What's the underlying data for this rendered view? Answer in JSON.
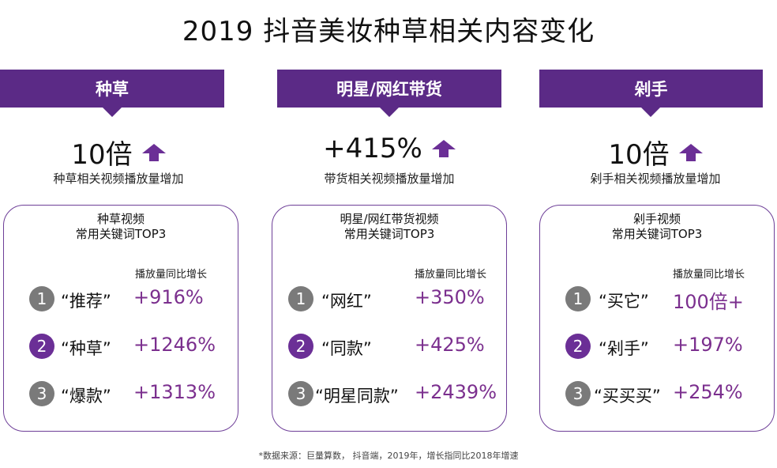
{
  "title": "2019 抖音美妆种草相关内容变化",
  "columns": [
    {
      "banner": "种草",
      "metric": "10倍",
      "metric_label": "种草相关视频播放量增加",
      "card_head_1": "种草视频",
      "card_head_2": "常用关键词TOP3",
      "growth_header": "播放量同比增长",
      "rows": [
        {
          "rank": "1",
          "keyword": "“推荐”",
          "growth": "+916%"
        },
        {
          "rank": "2",
          "keyword": "“种草”",
          "growth": "+1246%"
        },
        {
          "rank": "3",
          "keyword": "“爆款”",
          "growth": "+1313%"
        }
      ]
    },
    {
      "banner": "明星/网红带货",
      "metric": "+415%",
      "metric_label": "带货相关视频播放量增加",
      "card_head_1": "明星/网红带货视频",
      "card_head_2": "常用关键词TOP3",
      "growth_header": "播放量同比增长",
      "rows": [
        {
          "rank": "1",
          "keyword": "“网红”",
          "growth": "+350%"
        },
        {
          "rank": "2",
          "keyword": "“同款”",
          "growth": "+425%"
        },
        {
          "rank": "3",
          "keyword": "“明星同款”",
          "growth": "+2439%"
        }
      ]
    },
    {
      "banner": "剁手",
      "metric": "10倍",
      "metric_label": "剁手相关视频播放量增加",
      "card_head_1": "剁手视频",
      "card_head_2": "常用关键词TOP3",
      "growth_header": "播放量同比增长",
      "rows": [
        {
          "rank": "1",
          "keyword": "“买它”",
          "growth": "100倍+"
        },
        {
          "rank": "2",
          "keyword": "“剁手”",
          "growth": "+197%"
        },
        {
          "rank": "3",
          "keyword": "“买买买”",
          "growth": "+254%"
        }
      ]
    }
  ],
  "footnote": "*数据来源：巨量算数， 抖音端，2019年，增长指同比2018年增速",
  "colors": {
    "banner": "#5b2a86",
    "accent": "#7b2f8e",
    "rank_grey": "#7a7a7a",
    "rank_purple": "#6b2f96"
  }
}
